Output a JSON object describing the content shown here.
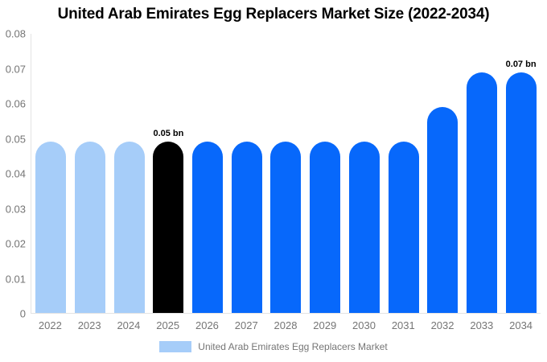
{
  "title": "United Arab Emirates Egg Replacers Market Size (2022-2034)",
  "legend": {
    "label": "United Arab Emirates Egg Replacers Market",
    "swatch_color": "#a6cdf9"
  },
  "colors": {
    "historical_bar": "#a6cdf9",
    "base_year_bar": "#000000",
    "forecast_bar": "#0768fb",
    "axis_text": "#757575",
    "axis_line": "#e3e3e3",
    "value_label_text": "#000000"
  },
  "chart_data": {
    "type": "bar",
    "title": "United Arab Emirates Egg Replacers Market Size (2022-2034)",
    "xlabel": "",
    "ylabel": "",
    "ylim": [
      0,
      0.08
    ],
    "ytick_labels": [
      "0",
      "0.01",
      "0.02",
      "0.03",
      "0.04",
      "0.05",
      "0.06",
      "0.07",
      "0.08"
    ],
    "grid": false,
    "legend_position": "bottom",
    "categories": [
      "2022",
      "2023",
      "2024",
      "2025",
      "2026",
      "2027",
      "2028",
      "2029",
      "2030",
      "2031",
      "2032",
      "2033",
      "2034"
    ],
    "values": [
      0.049,
      0.049,
      0.049,
      0.049,
      0.049,
      0.049,
      0.049,
      0.049,
      0.049,
      0.049,
      0.059,
      0.069,
      0.069
    ],
    "bar_colors": [
      "#a6cdf9",
      "#a6cdf9",
      "#a6cdf9",
      "#000000",
      "#0768fb",
      "#0768fb",
      "#0768fb",
      "#0768fb",
      "#0768fb",
      "#0768fb",
      "#0768fb",
      "#0768fb",
      "#0768fb"
    ],
    "annotations": [
      {
        "index": 3,
        "text": "0.05 bn"
      },
      {
        "index": 12,
        "text": "0.07 bn"
      }
    ],
    "series": [
      {
        "name": "United Arab Emirates Egg Replacers Market",
        "values": [
          0.049,
          0.049,
          0.049,
          0.049,
          0.049,
          0.049,
          0.049,
          0.049,
          0.049,
          0.049,
          0.059,
          0.069,
          0.069
        ]
      }
    ]
  }
}
